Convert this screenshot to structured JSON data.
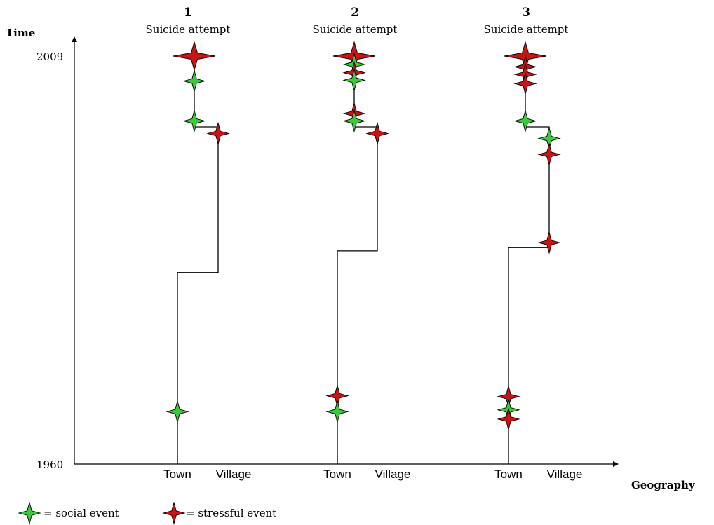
{
  "axes": {
    "y_title": "Time",
    "x_title": "Geography",
    "y_top_label": "2009",
    "y_bottom_label": "1960"
  },
  "colors": {
    "social": "#3cc93c",
    "stressful": "#c81414",
    "line": "#000000"
  },
  "cases": [
    {
      "number": "1",
      "outcome": "Suicide attempt",
      "town_label": "Town",
      "village_label": "Village",
      "move_to_village_year": 1983,
      "move_to_town_year": 2000.5,
      "events": [
        {
          "type": "stressful",
          "place": "town",
          "year": 2009,
          "outcome": true
        },
        {
          "type": "social",
          "place": "town",
          "year": 2006
        },
        {
          "type": "social",
          "place": "town",
          "year": 2001.2
        },
        {
          "type": "stressful",
          "place": "village",
          "year": 1999.7
        },
        {
          "type": "social",
          "place": "town",
          "year": 1966.3
        }
      ]
    },
    {
      "number": "2",
      "outcome": "Suicide attempt",
      "town_label": "Town",
      "village_label": "Village",
      "move_to_village_year": 1985.6,
      "move_to_town_year": 2000.5,
      "events": [
        {
          "type": "stressful",
          "place": "town",
          "year": 2009,
          "outcome": true
        },
        {
          "type": "social",
          "place": "town",
          "year": 2008
        },
        {
          "type": "stressful",
          "place": "town",
          "year": 2007
        },
        {
          "type": "social",
          "place": "town",
          "year": 2006.1
        },
        {
          "type": "stressful",
          "place": "town",
          "year": 2002.1
        },
        {
          "type": "social",
          "place": "town",
          "year": 2001.2
        },
        {
          "type": "stressful",
          "place": "village",
          "year": 1999.7
        },
        {
          "type": "stressful",
          "place": "town",
          "year": 1968.2
        },
        {
          "type": "social",
          "place": "town",
          "year": 1966.3
        }
      ]
    },
    {
      "number": "3",
      "outcome": "Suicide attempt",
      "town_label": "Town",
      "village_label": "Village",
      "move_to_village_year": 1986,
      "move_to_town_year": 2000.5,
      "events": [
        {
          "type": "stressful",
          "place": "town",
          "year": 2009,
          "outcome": true
        },
        {
          "type": "stressful",
          "place": "town",
          "year": 2007.7
        },
        {
          "type": "stressful",
          "place": "town",
          "year": 2006.8
        },
        {
          "type": "stressful",
          "place": "town",
          "year": 2005.7
        },
        {
          "type": "social",
          "place": "town",
          "year": 2001.2
        },
        {
          "type": "social",
          "place": "village",
          "year": 1999.1
        },
        {
          "type": "stressful",
          "place": "village",
          "year": 1997.2
        },
        {
          "type": "stressful",
          "place": "village",
          "year": 1986.6
        },
        {
          "type": "stressful",
          "place": "town",
          "year": 1968.1
        },
        {
          "type": "social",
          "place": "town",
          "year": 1966.5
        },
        {
          "type": "stressful",
          "place": "town",
          "year": 1965.4
        }
      ]
    }
  ],
  "legend": {
    "social_text": "= social event",
    "stressful_text": "= stressful event"
  }
}
